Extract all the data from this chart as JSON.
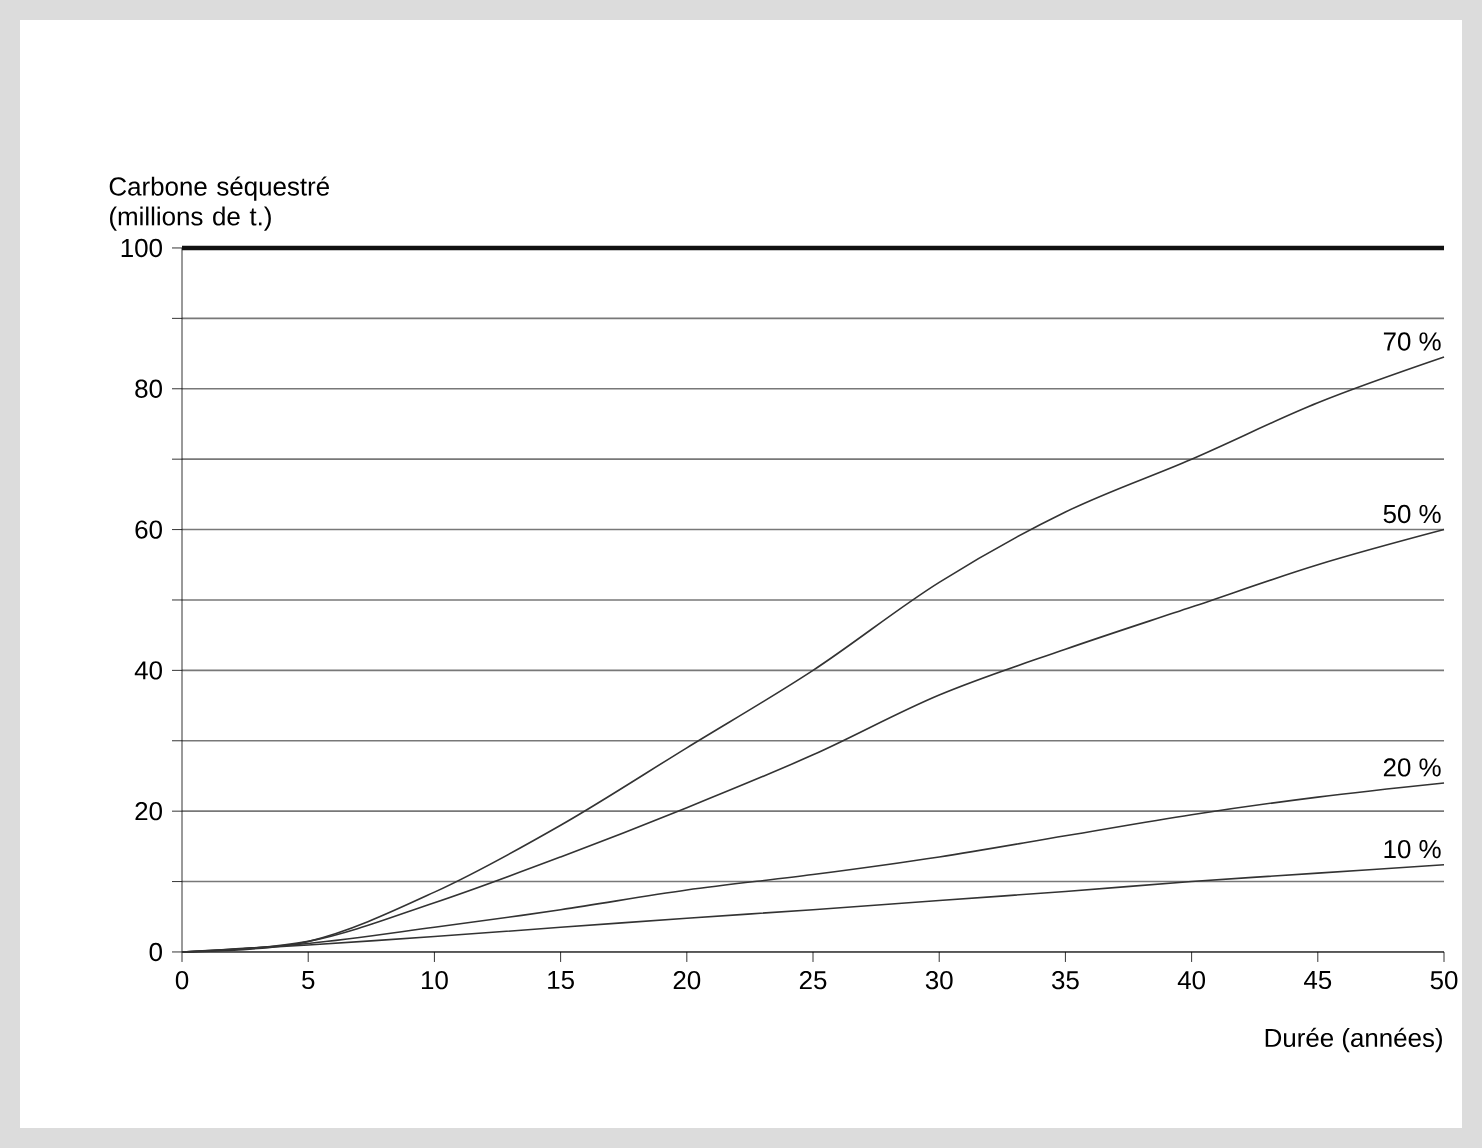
{
  "chart_data": {
    "type": "line",
    "ylabel": "Carbone séquestré (millions de t.)",
    "xlabel": "Durée (années)",
    "x": [
      0,
      5,
      10,
      15,
      20,
      25,
      30,
      35,
      40,
      45,
      50
    ],
    "series": [
      {
        "name": "70 %",
        "color": "#333333",
        "values": [
          0,
          1.5,
          8.5,
          18,
          29,
          40,
          52.5,
          62.5,
          70,
          78,
          84.5
        ]
      },
      {
        "name": "50 %",
        "color": "#333333",
        "values": [
          0,
          1.5,
          7,
          13.5,
          20.5,
          28,
          36.5,
          43,
          49,
          55,
          60
        ]
      },
      {
        "name": "20 %",
        "color": "#333333",
        "values": [
          0,
          1.2,
          3.5,
          6,
          8.8,
          11,
          13.5,
          16.5,
          19.5,
          22,
          24
        ]
      },
      {
        "name": "10 %",
        "color": "#333333",
        "values": [
          0,
          1,
          2.2,
          3.5,
          4.8,
          6,
          7.3,
          8.6,
          10,
          11.2,
          12.4
        ]
      }
    ],
    "xlim": [
      0,
      50
    ],
    "ylim": [
      0,
      100
    ],
    "xticks": [
      0,
      5,
      10,
      15,
      20,
      25,
      30,
      35,
      40,
      45,
      50
    ],
    "yticks": [
      0,
      {
        "value": 10,
        "label": null
      },
      20,
      {
        "value": 30,
        "label": null
      },
      40,
      {
        "value": 50,
        "label": null
      },
      60,
      {
        "value": 70,
        "label": null
      },
      80,
      {
        "value": 90,
        "label": null
      },
      100
    ],
    "ref_lines": [
      {
        "axis": "y",
        "value": 100,
        "color": "#111111"
      }
    ],
    "grid": "y",
    "legend": false,
    "marker": "none",
    "line_style": "solid"
  }
}
